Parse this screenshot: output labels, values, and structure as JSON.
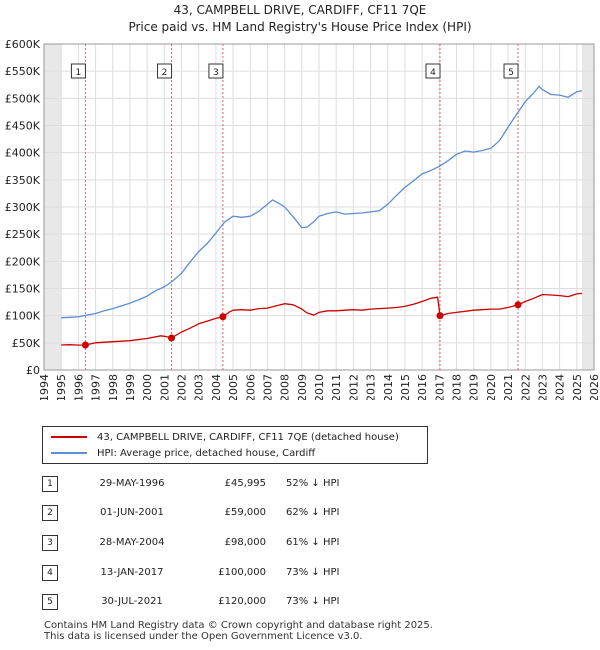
{
  "title_line1": "43, CAMPBELL DRIVE, CARDIFF, CF11 7QE",
  "title_line2": "Price paid vs. HM Land Registry's House Price Index (HPI)",
  "chart_data": {
    "type": "line",
    "x_range": [
      1994,
      2026
    ],
    "ylim": [
      0,
      600000
    ],
    "x_ticks": [
      "1994",
      "1995",
      "1996",
      "1997",
      "1998",
      "1999",
      "2000",
      "2001",
      "2002",
      "2003",
      "2004",
      "2005",
      "2006",
      "2007",
      "2008",
      "2009",
      "2010",
      "2011",
      "2012",
      "2013",
      "2014",
      "2015",
      "2016",
      "2017",
      "2018",
      "2019",
      "2020",
      "2021",
      "2022",
      "2023",
      "2024",
      "2025",
      "2026"
    ],
    "y_ticks": [
      {
        "value": 0,
        "label": "£0"
      },
      {
        "value": 50000,
        "label": "£50K"
      },
      {
        "value": 100000,
        "label": "£100K"
      },
      {
        "value": 150000,
        "label": "£150K"
      },
      {
        "value": 200000,
        "label": "£200K"
      },
      {
        "value": 250000,
        "label": "£250K"
      },
      {
        "value": 300000,
        "label": "£300K"
      },
      {
        "value": 350000,
        "label": "£350K"
      },
      {
        "value": 400000,
        "label": "£400K"
      },
      {
        "value": 450000,
        "label": "£450K"
      },
      {
        "value": 500000,
        "label": "£500K"
      },
      {
        "value": 550000,
        "label": "£550K"
      },
      {
        "value": 600000,
        "label": "£600K"
      }
    ],
    "shaded_years": [
      [
        1994,
        1995
      ],
      [
        2025.3,
        2026
      ]
    ],
    "series": [
      {
        "name": "43, CAMPBELL DRIVE, CARDIFF, CF11 7QE (detached house)",
        "color": "#cc0000",
        "x": [
          1995.0,
          1995.5,
          1996.0,
          1996.41,
          1997.0,
          1998.0,
          1999.0,
          2000.0,
          2000.8,
          2001.0,
          2001.42,
          2002.0,
          2002.5,
          2003.0,
          2003.5,
          2004.0,
          2004.41,
          2004.8,
          2005.0,
          2005.5,
          2006.0,
          2006.5,
          2007.0,
          2007.5,
          2008.0,
          2008.5,
          2009.0,
          2009.3,
          2009.7,
          2010.0,
          2010.5,
          2011.0,
          2011.5,
          2012.0,
          2012.5,
          2013.0,
          2013.5,
          2014.0,
          2014.5,
          2015.0,
          2015.5,
          2016.0,
          2016.5,
          2016.9,
          2017.04,
          2017.5,
          2018.0,
          2018.5,
          2019.0,
          2019.5,
          2020.0,
          2020.5,
          2021.0,
          2021.58,
          2022.0,
          2022.5,
          2023.0,
          2023.5,
          2024.0,
          2024.5,
          2025.0,
          2025.3
        ],
        "values": [
          46000,
          46500,
          45800,
          45995,
          50000,
          52000,
          54000,
          58000,
          63000,
          62000,
          59000,
          70000,
          77000,
          85000,
          90000,
          95000,
          98000,
          107000,
          110000,
          111000,
          110000,
          113000,
          114000,
          118000,
          122000,
          120000,
          112000,
          105000,
          101000,
          106000,
          109000,
          109000,
          110000,
          111000,
          110000,
          112000,
          113000,
          114000,
          115000,
          117000,
          121000,
          126000,
          132000,
          134000,
          100000,
          104000,
          106000,
          108000,
          110000,
          111000,
          112000,
          112000,
          115000,
          120000,
          126000,
          132000,
          139000,
          138000,
          137000,
          135000,
          140000,
          141000
        ]
      },
      {
        "name": "HPI: Average price, detached house, Cardiff",
        "color": "#5b8ed6",
        "x": [
          1995.0,
          1995.5,
          1996.0,
          1996.5,
          1997.0,
          1997.5,
          1998.0,
          1998.5,
          1999.0,
          1999.5,
          2000.0,
          2000.5,
          2001.0,
          2001.5,
          2002.0,
          2002.5,
          2003.0,
          2003.5,
          2004.0,
          2004.5,
          2005.0,
          2005.5,
          2006.0,
          2006.5,
          2007.0,
          2007.3,
          2007.7,
          2008.0,
          2008.5,
          2009.0,
          2009.3,
          2009.7,
          2010.0,
          2010.5,
          2011.0,
          2011.5,
          2012.0,
          2012.5,
          2013.0,
          2013.5,
          2014.0,
          2014.5,
          2015.0,
          2015.5,
          2016.0,
          2016.5,
          2017.0,
          2017.5,
          2018.0,
          2018.5,
          2019.0,
          2019.5,
          2020.0,
          2020.5,
          2021.0,
          2021.5,
          2022.0,
          2022.5,
          2022.8,
          2023.0,
          2023.5,
          2024.0,
          2024.5,
          2025.0,
          2025.3
        ],
        "values": [
          96000,
          97000,
          98000,
          101000,
          104000,
          109000,
          113000,
          118000,
          123000,
          129000,
          136000,
          146000,
          153000,
          164000,
          178000,
          199000,
          218000,
          233000,
          252000,
          272000,
          283000,
          281000,
          283000,
          292000,
          305000,
          313000,
          306000,
          300000,
          282000,
          262000,
          263000,
          273000,
          283000,
          288000,
          291000,
          287000,
          288000,
          289000,
          291000,
          293000,
          305000,
          321000,
          336000,
          348000,
          361000,
          367000,
          375000,
          385000,
          397000,
          403000,
          401000,
          404000,
          408000,
          422000,
          447000,
          471000,
          494000,
          510000,
          522000,
          516000,
          507000,
          506000,
          502000,
          512000,
          514000
        ]
      }
    ],
    "sales": [
      {
        "num": "1",
        "year": 1996.41,
        "price": 45995
      },
      {
        "num": "2",
        "year": 2001.42,
        "price": 59000
      },
      {
        "num": "3",
        "year": 2004.41,
        "price": 98000
      },
      {
        "num": "4",
        "year": 2017.04,
        "price": 100000
      },
      {
        "num": "5",
        "year": 2021.58,
        "price": 120000
      }
    ]
  },
  "legend": {
    "property": "43, CAMPBELL DRIVE, CARDIFF, CF11 7QE (detached house)",
    "hpi": "HPI: Average price, detached house, Cardiff",
    "property_color": "#cc0000",
    "hpi_color": "#5b8ed6"
  },
  "sales_table": [
    {
      "num": "1",
      "date": "29-MAY-1996",
      "price": "£45,995",
      "hpi": "52% ↓ HPI"
    },
    {
      "num": "2",
      "date": "01-JUN-2001",
      "price": "£59,000",
      "hpi": "62% ↓ HPI"
    },
    {
      "num": "3",
      "date": "28-MAY-2004",
      "price": "£98,000",
      "hpi": "61% ↓ HPI"
    },
    {
      "num": "4",
      "date": "13-JAN-2017",
      "price": "£100,000",
      "hpi": "73% ↓ HPI"
    },
    {
      "num": "5",
      "date": "30-JUL-2021",
      "price": "£120,000",
      "hpi": "73% ↓ HPI"
    }
  ],
  "footer_line1": "Contains HM Land Registry data © Crown copyright and database right 2025.",
  "footer_line2": "This data is licensed under the Open Government Licence v3.0."
}
